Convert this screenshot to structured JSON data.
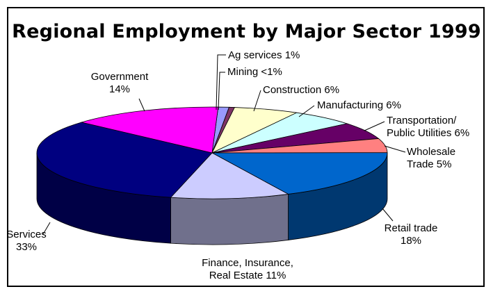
{
  "chart_data": {
    "type": "pie",
    "title": "Regional Employment by Major Sector 1999",
    "slices": [
      {
        "name": "Ag services",
        "value": 1,
        "label_lines": [
          "Ag services 1%"
        ],
        "color": "#9999ff"
      },
      {
        "name": "Mining",
        "value": 0.5,
        "label_lines": [
          "Mining <1%"
        ],
        "color": "#7f3366"
      },
      {
        "name": "Construction",
        "value": 6,
        "label_lines": [
          "Construction 6%"
        ],
        "color": "#ffffcc"
      },
      {
        "name": "Manufacturing",
        "value": 6,
        "label_lines": [
          "Manufacturing 6%"
        ],
        "color": "#ccffff"
      },
      {
        "name": "Transportation/Public Utilities",
        "value": 6,
        "label_lines": [
          "Transportation/",
          "Public Utilities 6%"
        ],
        "color": "#660066"
      },
      {
        "name": "Wholesale Trade",
        "value": 5,
        "label_lines": [
          "Wholesale",
          "Trade 5%"
        ],
        "color": "#ff8080"
      },
      {
        "name": "Retail trade",
        "value": 18,
        "label_lines": [
          "Retail trade",
          "18%"
        ],
        "color": "#0066cc"
      },
      {
        "name": "Finance, Insurance, Real Estate",
        "value": 11,
        "label_lines": [
          "Finance, Insurance,",
          "Real Estate 11%"
        ],
        "color": "#ccccff"
      },
      {
        "name": "Services",
        "value": 33,
        "label_lines": [
          "Services",
          "33%"
        ],
        "color": "#000080"
      },
      {
        "name": "Government",
        "value": 14,
        "label_lines": [
          "Government",
          "14%"
        ],
        "color": "#ff00ff"
      }
    ]
  }
}
